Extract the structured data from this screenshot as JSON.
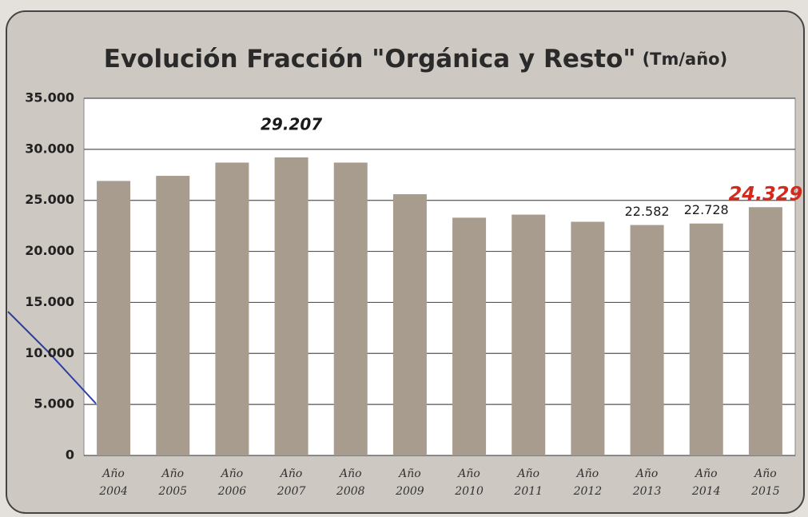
{
  "chart_data": {
    "type": "bar",
    "title": "Evolución Fracción \"Orgánica y Resto\"",
    "unit": "(Tm/año)",
    "categories": [
      "Año 2004",
      "Año 2005",
      "Año 2006",
      "Año 2007",
      "Año 2008",
      "Año 2009",
      "Año 2010",
      "Año 2011",
      "Año 2012",
      "Año 2013",
      "Año 2014",
      "Año 2015"
    ],
    "values": [
      26900,
      27400,
      28700,
      29207,
      28700,
      25600,
      23300,
      23600,
      22900,
      22582,
      22728,
      24329
    ],
    "value_labels": [
      null,
      null,
      null,
      "29.207",
      null,
      null,
      null,
      null,
      null,
      "22.582",
      "22.728",
      "24.329"
    ],
    "value_label_colors": [
      null,
      null,
      null,
      "#1a1a1a",
      null,
      null,
      null,
      null,
      null,
      "#1a1a1a",
      "#1a1a1a",
      "#d42a1e"
    ],
    "color": "#a89c8e",
    "ylim": [
      0,
      35000
    ],
    "yticks": [
      0,
      {
        "value": 5000,
        "label": "5.000"
      },
      {
        "value": 10000,
        "label": "10.000"
      },
      {
        "value": 15000,
        "label": "15.000"
      },
      {
        "value": 20000,
        "label": "20.000"
      },
      {
        "value": 25000,
        "label": "25.000"
      },
      {
        "value": 30000,
        "label": "30.000"
      },
      {
        "value": 35000,
        "label": "35.000"
      }
    ],
    "grid": true
  }
}
